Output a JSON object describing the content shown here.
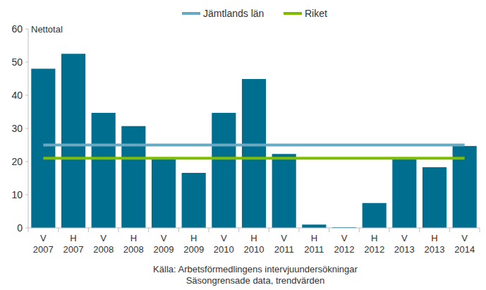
{
  "chart_data": {
    "type": "bar",
    "y_label": "Nettotal",
    "annotations": [
      "Källa: Arbetsförmedlingens intervjuundersökningar",
      "Säsongrensade data, trendvärden"
    ],
    "categories": [
      "V 2007",
      "H 2007",
      "V 2008",
      "H 2008",
      "V 2009",
      "H 2009",
      "V 2010",
      "H 2010",
      "V 2011",
      "H 2011",
      "V 2012",
      "H 2012",
      "V 2013",
      "H 2013",
      "V 2014"
    ],
    "series": [
      {
        "type": "bar",
        "color": "#006e8f",
        "values": [
          48,
          52.5,
          34.7,
          30.7,
          20.8,
          16.6,
          34.7,
          44.9,
          22.3,
          1,
          0.2,
          7.5,
          20.8,
          18.3,
          24.7
        ]
      },
      {
        "type": "line",
        "name": "Jämtlands län",
        "color": "#6aa9c2",
        "values": [
          25,
          25,
          25,
          25,
          25,
          25,
          25,
          25,
          25,
          25,
          25,
          25,
          25,
          25,
          25
        ]
      },
      {
        "type": "line",
        "name": "Riket",
        "color": "#80bc00",
        "values": [
          21,
          21,
          21,
          21,
          21,
          21,
          21,
          21,
          21,
          21,
          21,
          21,
          21,
          21,
          21
        ]
      }
    ],
    "ylim": [
      0,
      60
    ],
    "yticks": [
      0,
      10,
      20,
      30,
      40,
      50,
      60
    ],
    "grid": false,
    "legend": "top"
  }
}
